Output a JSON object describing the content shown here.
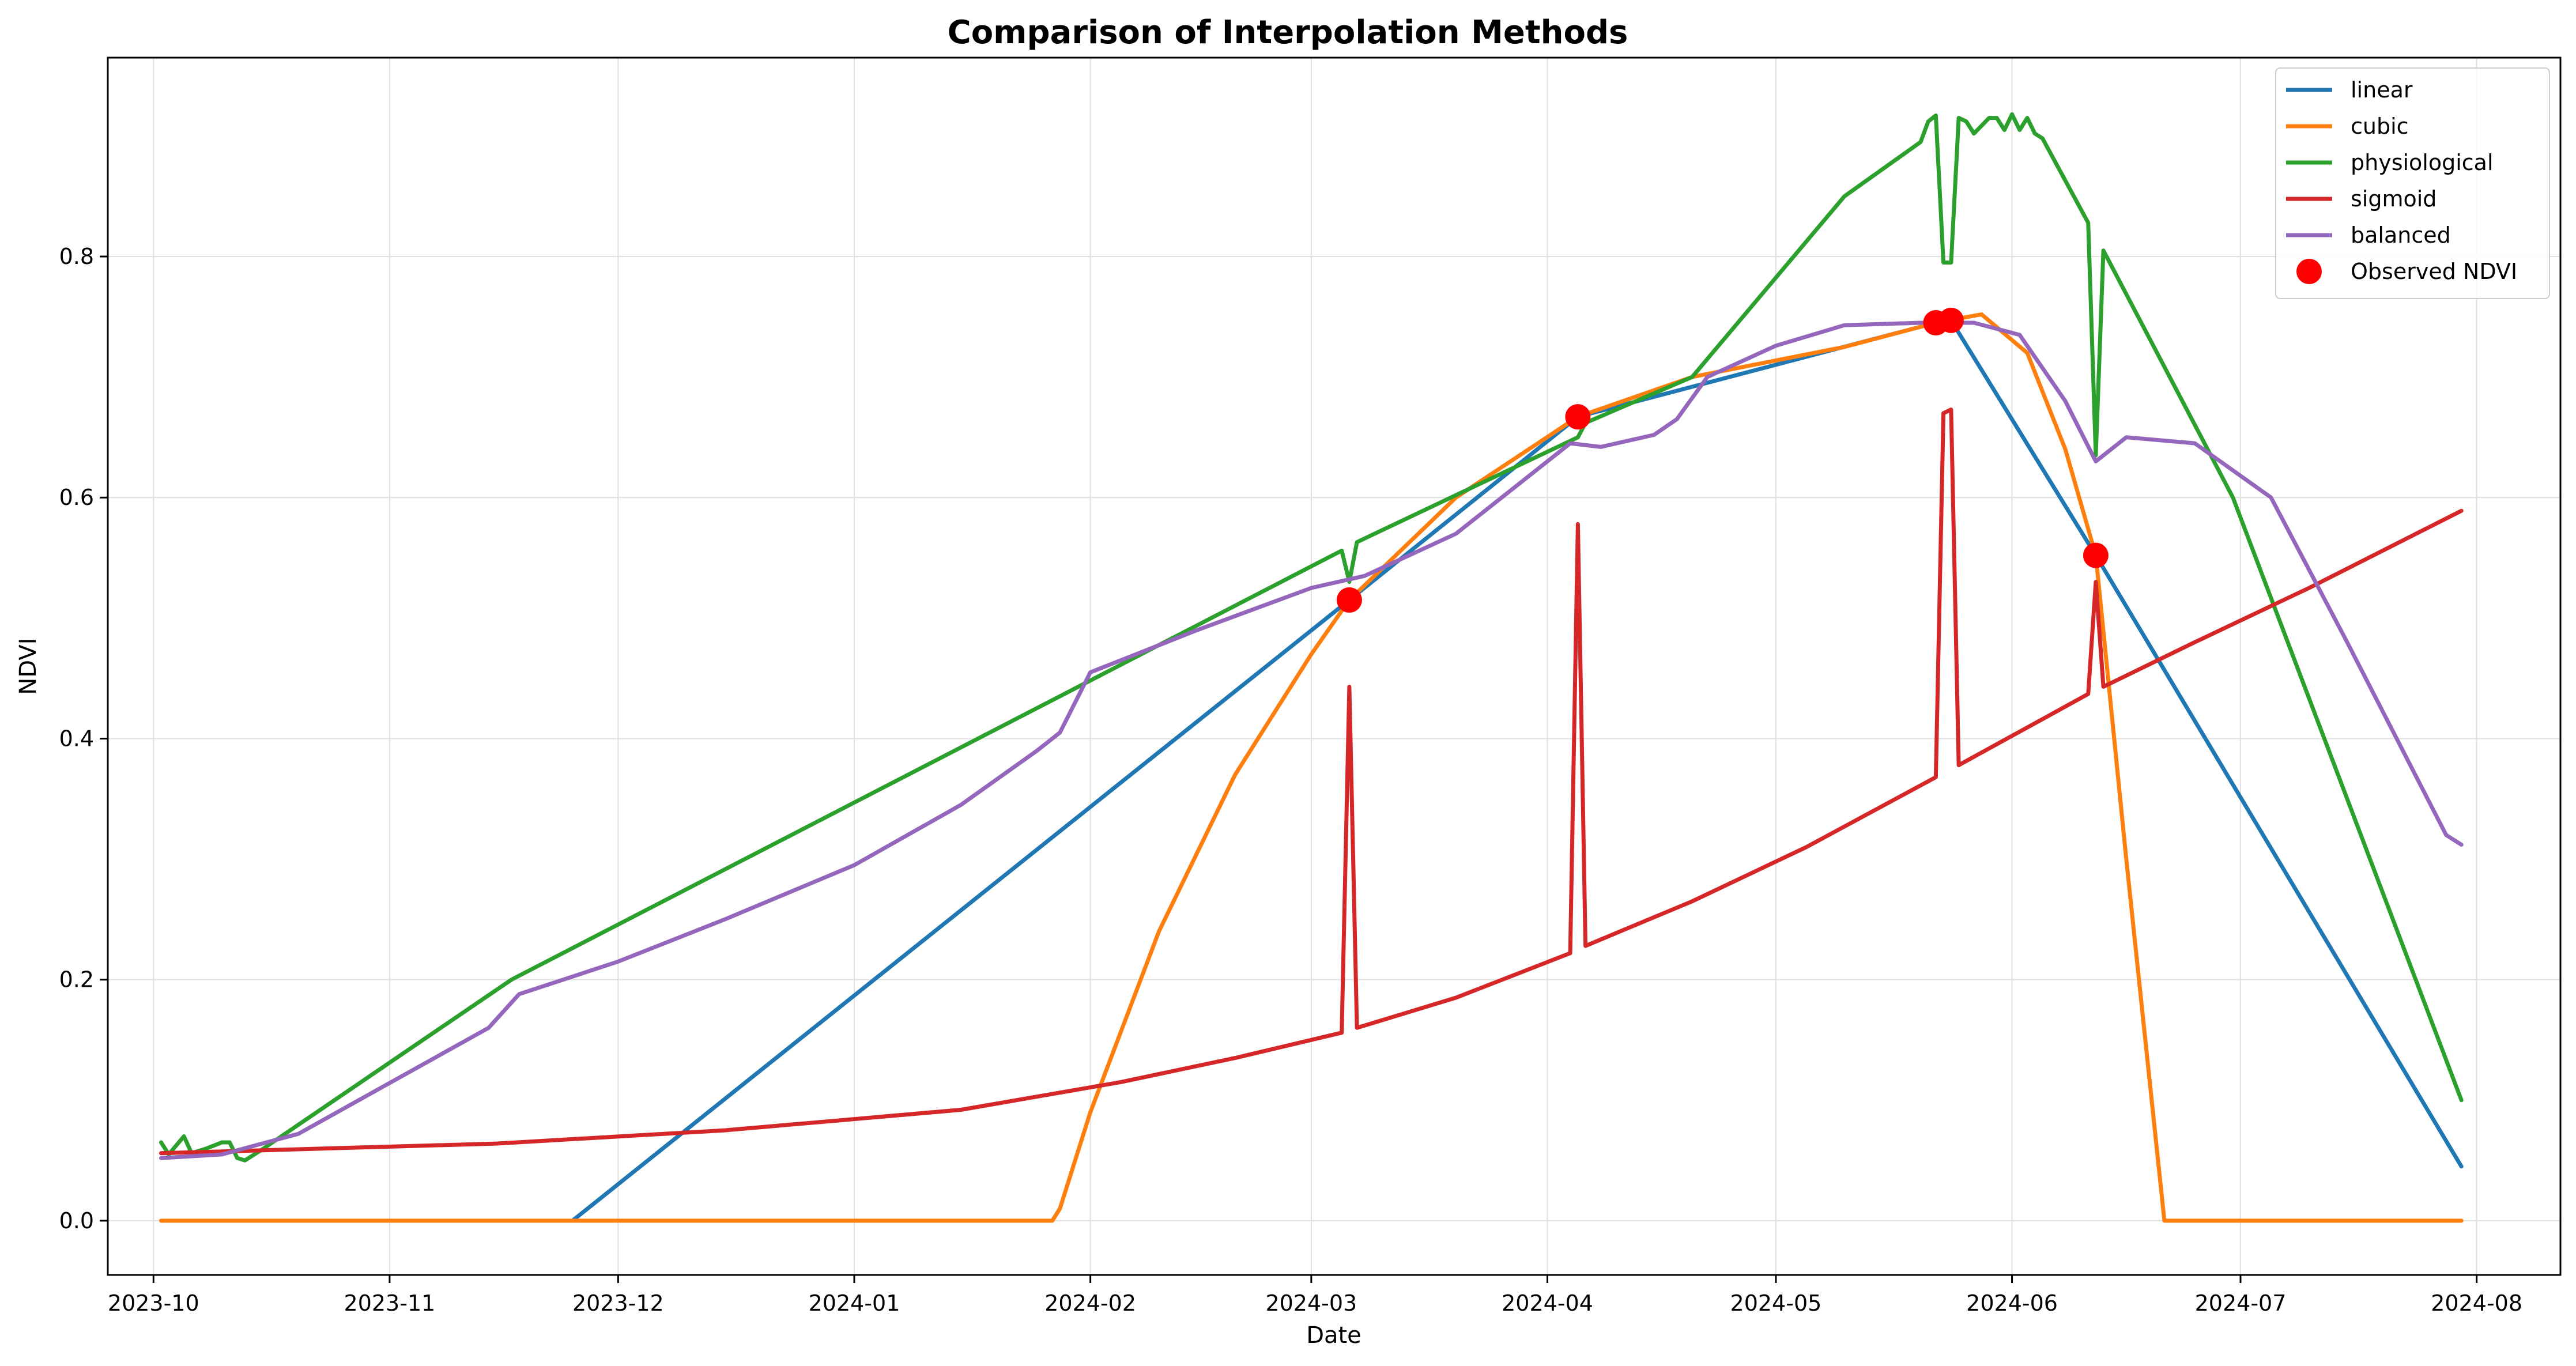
{
  "chart_data": {
    "type": "line",
    "title": "Comparison of Interpolation Methods",
    "xlabel": "Date",
    "ylabel": "NDVI",
    "xlim": [
      "2023-09-25",
      "2024-08-12"
    ],
    "ylim": [
      -0.045,
      0.965
    ],
    "grid": true,
    "legend_position": "top-right",
    "x_ticks": [
      "2023-10-01",
      "2023-11-01",
      "2023-12-01",
      "2024-01-01",
      "2024-02-01",
      "2024-03-01",
      "2024-04-01",
      "2024-05-01",
      "2024-06-01",
      "2024-07-01",
      "2024-08-01"
    ],
    "x_tick_labels": [
      "2023-10",
      "2023-11",
      "2023-12",
      "2024-01",
      "2024-02",
      "2024-03",
      "2024-04",
      "2024-05",
      "2024-06",
      "2024-07",
      "2024-08"
    ],
    "y_ticks": [
      0.0,
      0.2,
      0.4,
      0.6,
      0.8
    ],
    "y_tick_labels": [
      "0.0",
      "0.2",
      "0.4",
      "0.6",
      "0.8"
    ],
    "series": [
      {
        "name": "linear",
        "color": "#1f77b4",
        "points": [
          [
            "2023-11-25",
            0.0
          ],
          [
            "2024-03-06",
            0.515
          ],
          [
            "2024-04-05",
            0.667
          ],
          [
            "2024-05-22",
            0.745
          ],
          [
            "2024-05-24",
            0.747
          ],
          [
            "2024-06-12",
            0.552
          ],
          [
            "2024-07-30",
            0.045
          ]
        ]
      },
      {
        "name": "cubic",
        "color": "#ff7f0e",
        "points": [
          [
            "2023-10-02",
            0.0
          ],
          [
            "2024-01-27",
            0.0
          ],
          [
            "2024-01-28",
            0.01
          ],
          [
            "2024-02-01",
            0.09
          ],
          [
            "2024-02-10",
            0.24
          ],
          [
            "2024-02-20",
            0.37
          ],
          [
            "2024-03-01",
            0.47
          ],
          [
            "2024-03-06",
            0.515
          ],
          [
            "2024-03-20",
            0.6
          ],
          [
            "2024-04-05",
            0.667
          ],
          [
            "2024-04-20",
            0.7
          ],
          [
            "2024-05-10",
            0.725
          ],
          [
            "2024-05-22",
            0.745
          ],
          [
            "2024-05-28",
            0.752
          ],
          [
            "2024-06-03",
            0.72
          ],
          [
            "2024-06-08",
            0.64
          ],
          [
            "2024-06-12",
            0.552
          ],
          [
            "2024-06-16",
            0.3
          ],
          [
            "2024-06-21",
            0.0
          ],
          [
            "2024-07-30",
            0.0
          ]
        ]
      },
      {
        "name": "physiological",
        "color": "#2ca02c",
        "points": [
          [
            "2023-10-02",
            0.065
          ],
          [
            "2023-10-03",
            0.055
          ],
          [
            "2023-10-05",
            0.07
          ],
          [
            "2023-10-06",
            0.056
          ],
          [
            "2023-10-08",
            0.06
          ],
          [
            "2023-10-10",
            0.065
          ],
          [
            "2023-10-11",
            0.065
          ],
          [
            "2023-10-12",
            0.052
          ],
          [
            "2023-10-13",
            0.05
          ],
          [
            "2023-10-15",
            0.058
          ],
          [
            "2023-11-17",
            0.2
          ],
          [
            "2024-03-05",
            0.556
          ],
          [
            "2024-03-06",
            0.53
          ],
          [
            "2024-03-07",
            0.563
          ],
          [
            "2024-04-05",
            0.65
          ],
          [
            "2024-04-06",
            0.662
          ],
          [
            "2024-04-20",
            0.7
          ],
          [
            "2024-05-10",
            0.85
          ],
          [
            "2024-05-20",
            0.895
          ],
          [
            "2024-05-21",
            0.912
          ],
          [
            "2024-05-22",
            0.917
          ],
          [
            "2024-05-23",
            0.795
          ],
          [
            "2024-05-24",
            0.795
          ],
          [
            "2024-05-25",
            0.915
          ],
          [
            "2024-05-26",
            0.912
          ],
          [
            "2024-05-27",
            0.902
          ],
          [
            "2024-05-29",
            0.915
          ],
          [
            "2024-05-30",
            0.915
          ],
          [
            "2024-05-31",
            0.905
          ],
          [
            "2024-06-01",
            0.918
          ],
          [
            "2024-06-02",
            0.905
          ],
          [
            "2024-06-03",
            0.915
          ],
          [
            "2024-06-04",
            0.902
          ],
          [
            "2024-06-05",
            0.898
          ],
          [
            "2024-06-11",
            0.828
          ],
          [
            "2024-06-12",
            0.635
          ],
          [
            "2024-06-13",
            0.805
          ],
          [
            "2024-06-30",
            0.6
          ],
          [
            "2024-07-30",
            0.1
          ]
        ]
      },
      {
        "name": "sigmoid",
        "color": "#d62728",
        "points": [
          [
            "2023-10-02",
            0.056
          ],
          [
            "2023-11-15",
            0.064
          ],
          [
            "2023-12-15",
            0.075
          ],
          [
            "2024-01-15",
            0.092
          ],
          [
            "2024-02-05",
            0.115
          ],
          [
            "2024-02-20",
            0.135
          ],
          [
            "2024-03-05",
            0.156
          ],
          [
            "2024-03-06",
            0.443
          ],
          [
            "2024-03-07",
            0.16
          ],
          [
            "2024-03-20",
            0.185
          ],
          [
            "2024-04-04",
            0.222
          ],
          [
            "2024-04-05",
            0.578
          ],
          [
            "2024-04-06",
            0.228
          ],
          [
            "2024-04-20",
            0.265
          ],
          [
            "2024-05-05",
            0.31
          ],
          [
            "2024-05-22",
            0.368
          ],
          [
            "2024-05-23",
            0.67
          ],
          [
            "2024-05-24",
            0.673
          ],
          [
            "2024-05-25",
            0.378
          ],
          [
            "2024-06-11",
            0.437
          ],
          [
            "2024-06-12",
            0.53
          ],
          [
            "2024-06-13",
            0.443
          ],
          [
            "2024-06-25",
            0.48
          ],
          [
            "2024-07-10",
            0.525
          ],
          [
            "2024-07-30",
            0.589
          ]
        ]
      },
      {
        "name": "balanced",
        "color": "#9467bd",
        "points": [
          [
            "2023-10-02",
            0.052
          ],
          [
            "2023-10-10",
            0.055
          ],
          [
            "2023-10-20",
            0.072
          ],
          [
            "2023-11-14",
            0.16
          ],
          [
            "2023-11-18",
            0.188
          ],
          [
            "2023-12-01",
            0.215
          ],
          [
            "2023-12-15",
            0.25
          ],
          [
            "2024-01-01",
            0.295
          ],
          [
            "2024-01-15",
            0.345
          ],
          [
            "2024-01-25",
            0.39
          ],
          [
            "2024-01-28",
            0.405
          ],
          [
            "2024-02-01",
            0.455
          ],
          [
            "2024-02-15",
            0.49
          ],
          [
            "2024-03-01",
            0.525
          ],
          [
            "2024-03-08",
            0.535
          ],
          [
            "2024-03-20",
            0.57
          ],
          [
            "2024-04-01",
            0.63
          ],
          [
            "2024-04-04",
            0.645
          ],
          [
            "2024-04-08",
            0.642
          ],
          [
            "2024-04-15",
            0.652
          ],
          [
            "2024-04-18",
            0.665
          ],
          [
            "2024-04-22",
            0.7
          ],
          [
            "2024-05-01",
            0.726
          ],
          [
            "2024-05-10",
            0.743
          ],
          [
            "2024-05-20",
            0.745
          ],
          [
            "2024-05-27",
            0.745
          ],
          [
            "2024-06-02",
            0.735
          ],
          [
            "2024-06-08",
            0.68
          ],
          [
            "2024-06-12",
            0.63
          ],
          [
            "2024-06-16",
            0.65
          ],
          [
            "2024-06-25",
            0.645
          ],
          [
            "2024-07-05",
            0.6
          ],
          [
            "2024-07-15",
            0.48
          ],
          [
            "2024-07-28",
            0.32
          ],
          [
            "2024-07-30",
            0.312
          ]
        ]
      }
    ],
    "observed": {
      "name": "Observed NDVI",
      "color": "#ff0000",
      "points": [
        [
          "2024-03-06",
          0.515
        ],
        [
          "2024-04-05",
          0.667
        ],
        [
          "2024-05-22",
          0.745
        ],
        [
          "2024-05-24",
          0.747
        ],
        [
          "2024-06-12",
          0.552
        ]
      ]
    }
  }
}
